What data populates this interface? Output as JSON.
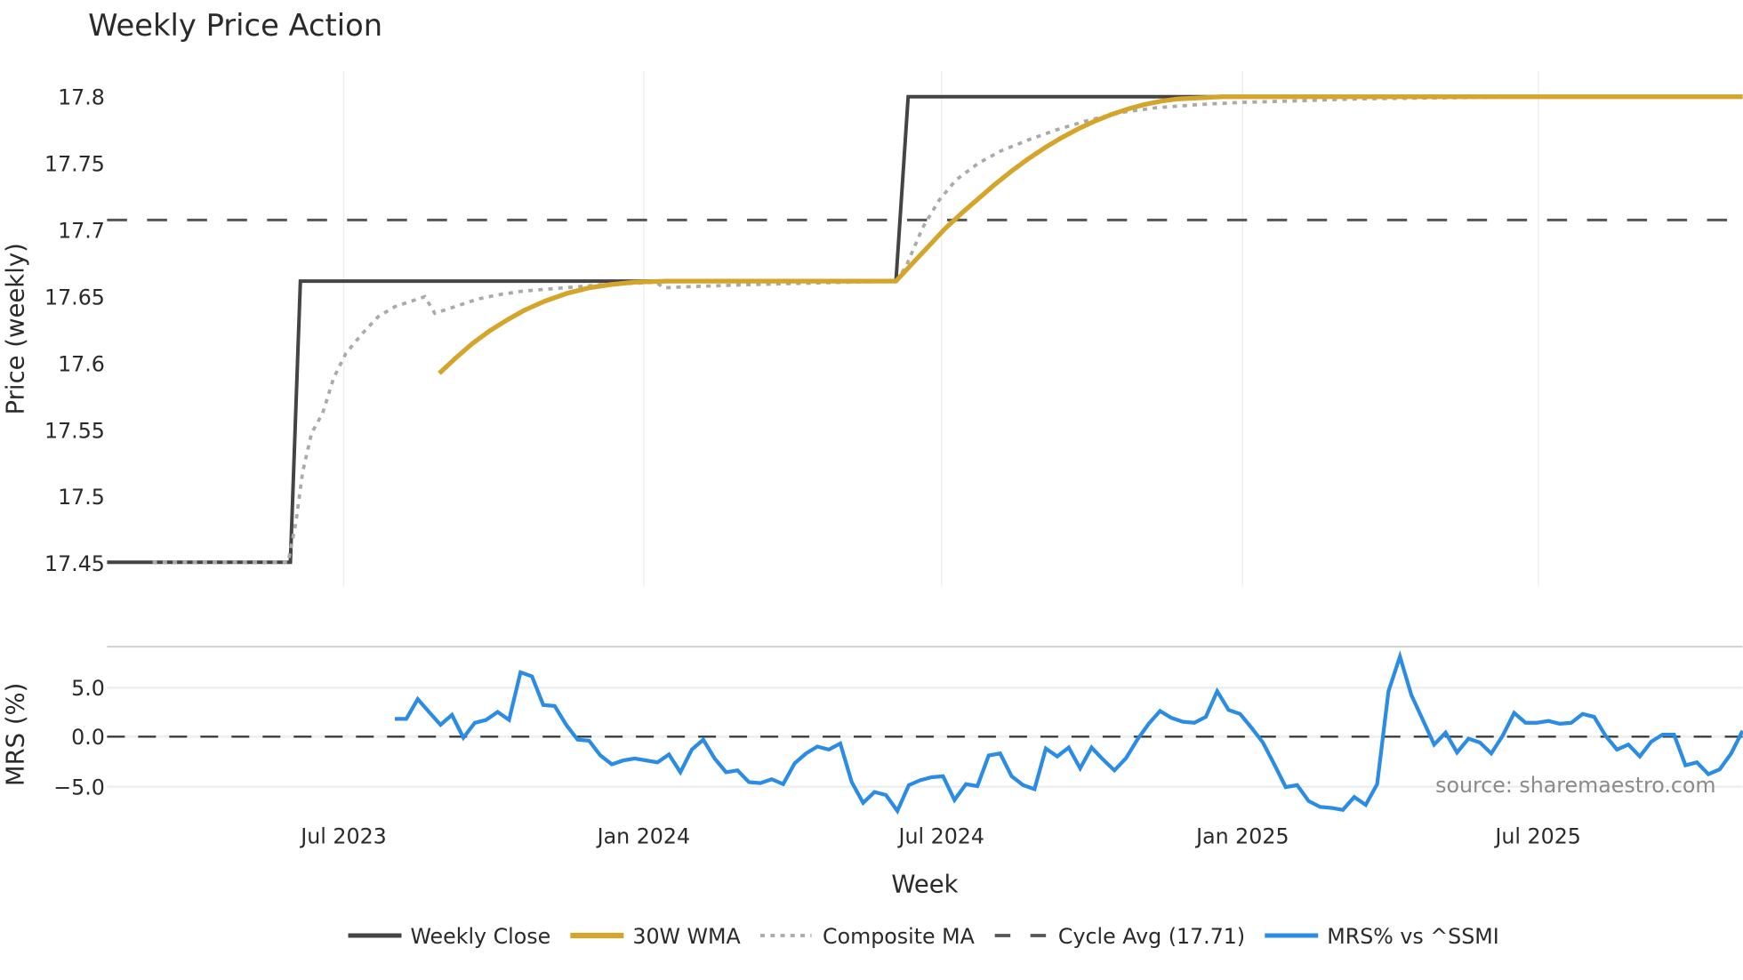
{
  "title": "Weekly Price Action",
  "colors": {
    "close": "#444444",
    "wma": "#d4a52a",
    "composite": "#aaaaaa",
    "cycle": "#555555",
    "mrs": "#2b8ce6",
    "grid": "#eeeeee"
  },
  "price_panel": {
    "ylabel": "Price (weekly)",
    "yticks": [
      "17.8",
      "17.75",
      "17.7",
      "17.65",
      "17.6",
      "17.55",
      "17.5",
      "17.45"
    ]
  },
  "mrs_panel": {
    "ylabel": "MRS (%)",
    "yticks": [
      "5.0",
      "0.0",
      "−5.0"
    ]
  },
  "xaxis": {
    "label": "Week",
    "ticks": [
      "Jul 2023",
      "Jan 2024",
      "Jul 2024",
      "Jan 2025",
      "Jul 2025"
    ]
  },
  "source": "source: sharemaestro.com",
  "legend": [
    {
      "label": "Weekly Close"
    },
    {
      "label": "30W WMA"
    },
    {
      "label": "Composite MA"
    },
    {
      "label": "Cycle Avg (17.71)"
    },
    {
      "label": "MRS% vs ^SSMI"
    }
  ],
  "chart_data": [
    {
      "type": "line",
      "title": "Weekly Price Action",
      "xlabel": "Week",
      "ylabel": "Price (weekly)",
      "ylim": [
        17.44,
        17.82
      ],
      "x_ticks": [
        "Jul 2023",
        "Jan 2024",
        "Jul 2024",
        "Jan 2025",
        "Jul 2025"
      ],
      "grid": true,
      "legend_position": "bottom",
      "series": [
        {
          "name": "Weekly Close",
          "points": [
            [
              "2023-03",
              17.45
            ],
            [
              "2023-06",
              17.45
            ],
            [
              "2023-06",
              17.662
            ],
            [
              "2024-06",
              17.662
            ],
            [
              "2024-06",
              17.8
            ],
            [
              "2025-11",
              17.8
            ]
          ]
        },
        {
          "name": "30W WMA",
          "points": [
            [
              "2023-10",
              17.593
            ],
            [
              "2023-11",
              17.62
            ],
            [
              "2023-12",
              17.645
            ],
            [
              "2024-01",
              17.66
            ],
            [
              "2024-06",
              17.662
            ],
            [
              "2024-08",
              17.71
            ],
            [
              "2024-09",
              17.74
            ],
            [
              "2024-11",
              17.775
            ],
            [
              "2025-01",
              17.8
            ],
            [
              "2025-11",
              17.8
            ]
          ]
        },
        {
          "name": "Composite MA",
          "points": [
            [
              "2023-04",
              17.45
            ],
            [
              "2023-06",
              17.45
            ],
            [
              "2023-06",
              17.55
            ],
            [
              "2023-07",
              17.6
            ],
            [
              "2023-08",
              17.64
            ],
            [
              "2023-09",
              17.65
            ],
            [
              "2023-09",
              17.638
            ],
            [
              "2023-11",
              17.655
            ],
            [
              "2024-01",
              17.661
            ],
            [
              "2024-01",
              17.656
            ],
            [
              "2024-06",
              17.662
            ],
            [
              "2024-07",
              17.73
            ],
            [
              "2024-09",
              17.765
            ],
            [
              "2024-11",
              17.785
            ],
            [
              "2025-01",
              17.795
            ],
            [
              "2025-11",
              17.8
            ]
          ]
        },
        {
          "name": "Cycle Avg (17.71)",
          "value": 17.71
        }
      ]
    },
    {
      "type": "line",
      "ylabel": "MRS (%)",
      "ylim": [
        -7.5,
        9.0
      ],
      "yticks": [
        5.0,
        0.0,
        -5.0
      ],
      "series": [
        {
          "name": "MRS% vs ^SSMI",
          "values": [
            1.8,
            1.8,
            3.8,
            2.5,
            1.2,
            2.2,
            -0.1,
            1.4,
            1.7,
            2.5,
            1.7,
            6.5,
            6.1,
            3.2,
            3.1,
            1.2,
            -0.3,
            -0.4,
            -1.9,
            -2.8,
            -2.4,
            -2.2,
            -2.4,
            -2.6,
            -1.8,
            -3.6,
            -1.3,
            -0.3,
            -2.2,
            -3.6,
            -3.4,
            -4.6,
            -4.7,
            -4.3,
            -4.8,
            -2.7,
            -1.7,
            -1.0,
            -1.3,
            -0.7,
            -4.6,
            -6.7,
            -5.6,
            -5.9,
            -7.5,
            -4.9,
            -4.4,
            -4.1,
            -4.0,
            -6.4,
            -4.8,
            -5.0,
            -1.9,
            -1.7,
            -4.0,
            -4.9,
            -5.3,
            -1.2,
            -2.0,
            -1.1,
            -3.2,
            -1.1,
            -2.3,
            -3.4,
            -2.2,
            -0.3,
            1.3,
            2.6,
            1.9,
            1.5,
            1.4,
            2.0,
            4.6,
            2.7,
            2.3,
            0.9,
            -0.6,
            -2.8,
            -5.1,
            -4.9,
            -6.5,
            -7.1,
            -7.2,
            -7.4,
            -6.1,
            -6.9,
            -4.8,
            4.6,
            8.1,
            4.2,
            1.7,
            -0.8,
            0.4,
            -1.6,
            -0.2,
            -0.6,
            -1.7,
            0.1,
            2.4,
            1.4,
            1.4,
            1.6,
            1.3,
            1.4,
            2.3,
            2.0,
            0.1,
            -1.3,
            -0.8,
            -2.0,
            -0.5,
            0.2,
            0.2,
            -2.9,
            -2.6,
            -3.8,
            -3.3,
            -1.7,
            0.6
          ]
        }
      ]
    }
  ]
}
